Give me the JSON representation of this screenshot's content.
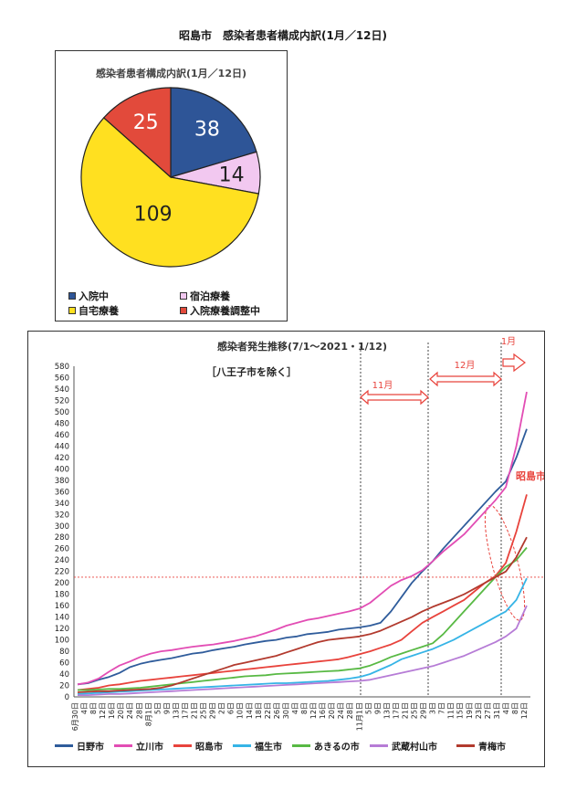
{
  "page": {
    "title": "昭島市　感染者患者構成内訳(1月／12日)"
  },
  "pie": {
    "title": "感染者患者構成内訳(1月／12日)",
    "legend": [
      {
        "label": "入院中",
        "color": "#2e5597"
      },
      {
        "label": "宿泊療養",
        "color": "#f2c8f0"
      },
      {
        "label": "自宅療養",
        "color": "#ffe020"
      },
      {
        "label": "入院療養調整中",
        "color": "#e24a3b"
      }
    ]
  },
  "line": {
    "title": "感染者発生推移(7/1～2021・1/12)",
    "subtitle": "［八王子市を除く］",
    "ref_label": "昭島市",
    "month_labels": {
      "nov": "11月",
      "dec": "12月",
      "jan": "1月"
    }
  },
  "chart_data": [
    {
      "type": "pie",
      "title": "感染者患者構成内訳(1月／12日)",
      "slices": [
        {
          "label": "入院中",
          "value": 38,
          "color": "#2e5597"
        },
        {
          "label": "宿泊療養",
          "value": 14,
          "color": "#f2c8f0"
        },
        {
          "label": "自宅療養",
          "value": 109,
          "color": "#ffe020"
        },
        {
          "label": "入院療養調整中",
          "value": 25,
          "color": "#e24a3b"
        }
      ]
    },
    {
      "type": "line",
      "title": "感染者発生推移(7/1～2021・1/12)",
      "ylim": [
        0,
        580
      ],
      "yticks": [
        0,
        20,
        40,
        60,
        80,
        100,
        120,
        140,
        160,
        180,
        200,
        220,
        240,
        260,
        280,
        300,
        320,
        340,
        360,
        380,
        400,
        420,
        440,
        460,
        480,
        500,
        520,
        540,
        560,
        580
      ],
      "xticks": [
        "6月30日",
        "4日",
        "8日",
        "12日",
        "16日",
        "20日",
        "24日",
        "28日",
        "8月1日",
        "5日",
        "9日",
        "13日",
        "17日",
        "21日",
        "25日",
        "29日",
        "2日",
        "6日",
        "10日",
        "14日",
        "18日",
        "22日",
        "26日",
        "30日",
        "4日",
        "8日",
        "12日",
        "16日",
        "20日",
        "24日",
        "28日",
        "11月1日",
        "5日",
        "9日",
        "13日",
        "17日",
        "21日",
        "25日",
        "29日",
        "3日",
        "7日",
        "11日",
        "15日",
        "19日",
        "23日",
        "27日",
        "31日",
        "4日",
        "8日",
        "12日"
      ],
      "reference_line": 210,
      "grid": false,
      "legend_position": "bottom",
      "series": [
        {
          "name": "日野市",
          "color": "#2f5c9b",
          "values": [
            22,
            24,
            30,
            35,
            42,
            52,
            58,
            62,
            65,
            68,
            72,
            76,
            78,
            82,
            85,
            88,
            92,
            95,
            98,
            100,
            104,
            106,
            110,
            112,
            114,
            118,
            120,
            122,
            125,
            130,
            150,
            175,
            200,
            220,
            238,
            260,
            280,
            300,
            320,
            340,
            360,
            378,
            420,
            470
          ]
        },
        {
          "name": "立川市",
          "color": "#e24db4",
          "values": [
            22,
            25,
            32,
            44,
            55,
            62,
            70,
            76,
            80,
            82,
            85,
            88,
            90,
            92,
            95,
            98,
            102,
            106,
            112,
            118,
            125,
            130,
            135,
            138,
            142,
            146,
            150,
            155,
            165,
            180,
            195,
            205,
            212,
            222,
            238,
            255,
            270,
            285,
            305,
            325,
            345,
            368,
            440,
            535
          ]
        },
        {
          "name": "昭島市",
          "color": "#e8433c",
          "values": [
            12,
            14,
            16,
            20,
            22,
            25,
            28,
            30,
            32,
            34,
            36,
            38,
            40,
            42,
            44,
            46,
            48,
            50,
            52,
            54,
            56,
            58,
            60,
            62,
            64,
            66,
            70,
            75,
            80,
            86,
            92,
            100,
            115,
            130,
            140,
            150,
            160,
            170,
            185,
            200,
            212,
            235,
            290,
            355
          ]
        },
        {
          "name": "福生市",
          "color": "#36b4e6",
          "values": [
            5,
            6,
            7,
            8,
            9,
            10,
            11,
            12,
            13,
            14,
            15,
            16,
            17,
            18,
            19,
            20,
            21,
            22,
            23,
            24,
            24,
            25,
            26,
            27,
            28,
            30,
            32,
            35,
            40,
            48,
            56,
            66,
            72,
            78,
            84,
            92,
            100,
            110,
            120,
            130,
            140,
            150,
            170,
            208
          ]
        },
        {
          "name": "あきるの市",
          "color": "#58b944",
          "values": [
            12,
            12,
            13,
            14,
            14,
            15,
            16,
            18,
            20,
            22,
            24,
            26,
            28,
            30,
            32,
            34,
            36,
            37,
            38,
            40,
            41,
            42,
            43,
            44,
            45,
            46,
            48,
            50,
            55,
            62,
            70,
            76,
            82,
            88,
            94,
            110,
            130,
            150,
            170,
            190,
            210,
            228,
            240,
            262
          ]
        },
        {
          "name": "武蔵村山市",
          "color": "#b67cd6",
          "values": [
            3,
            3,
            4,
            5,
            5,
            6,
            7,
            8,
            9,
            10,
            11,
            12,
            13,
            14,
            15,
            16,
            17,
            18,
            19,
            20,
            21,
            22,
            23,
            24,
            25,
            26,
            27,
            28,
            30,
            34,
            38,
            42,
            46,
            50,
            54,
            60,
            66,
            72,
            80,
            88,
            96,
            106,
            120,
            160
          ]
        },
        {
          "name": "青梅市",
          "color": "#b23a2e",
          "values": [
            8,
            9,
            10,
            10,
            11,
            12,
            13,
            14,
            16,
            20,
            26,
            32,
            38,
            44,
            50,
            56,
            60,
            64,
            68,
            72,
            78,
            84,
            90,
            96,
            100,
            102,
            104,
            106,
            110,
            116,
            124,
            132,
            140,
            150,
            158,
            165,
            172,
            180,
            190,
            200,
            210,
            220,
            245,
            280
          ]
        }
      ]
    }
  ]
}
